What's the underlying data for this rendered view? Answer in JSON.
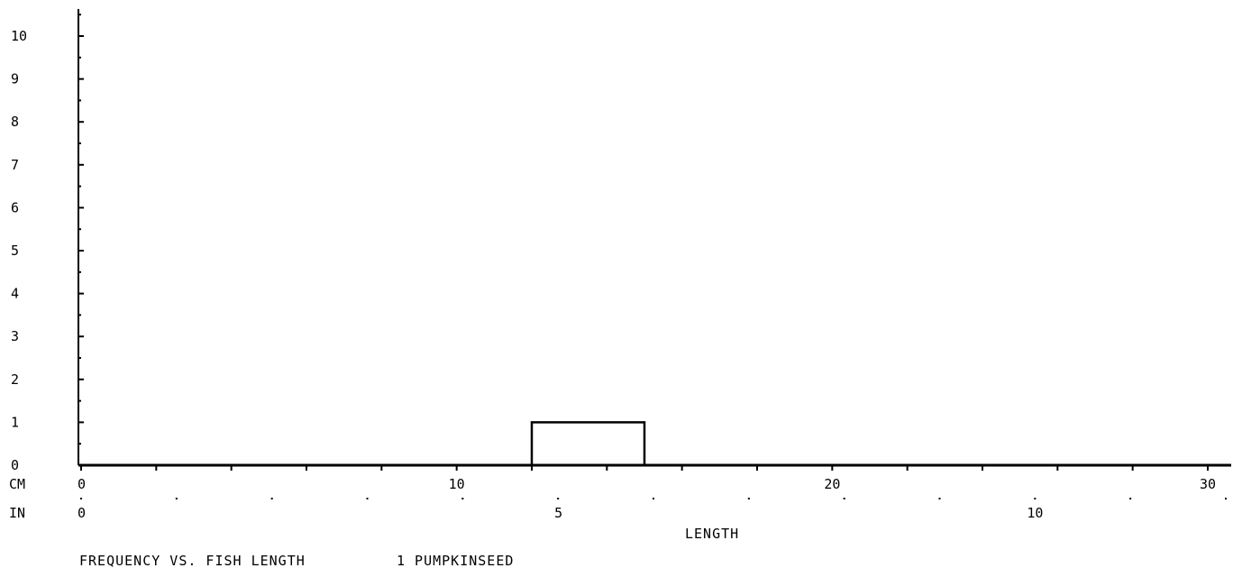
{
  "chart_data": {
    "type": "bar",
    "title": "FREQUENCY VS. FISH LENGTH",
    "subtitle": "1 PUMPKINSEED",
    "xlabel": "LENGTH",
    "ylabel": "",
    "x_unit_primary": "CM",
    "x_unit_secondary": "IN",
    "xlim": [
      0,
      31
    ],
    "ylim": [
      0,
      10.5
    ],
    "y_ticks": [
      0,
      1,
      2,
      3,
      4,
      5,
      6,
      7,
      8,
      9,
      10
    ],
    "x_ticks_cm": [
      0,
      10,
      20,
      30
    ],
    "x_ticks_in": [
      0,
      5,
      10
    ],
    "grid": false,
    "legend": "none",
    "bars": [
      {
        "x_start": 12,
        "x_end": 15,
        "value": 1
      }
    ],
    "colors": {
      "line": "#000000",
      "background": "#ffffff"
    }
  }
}
